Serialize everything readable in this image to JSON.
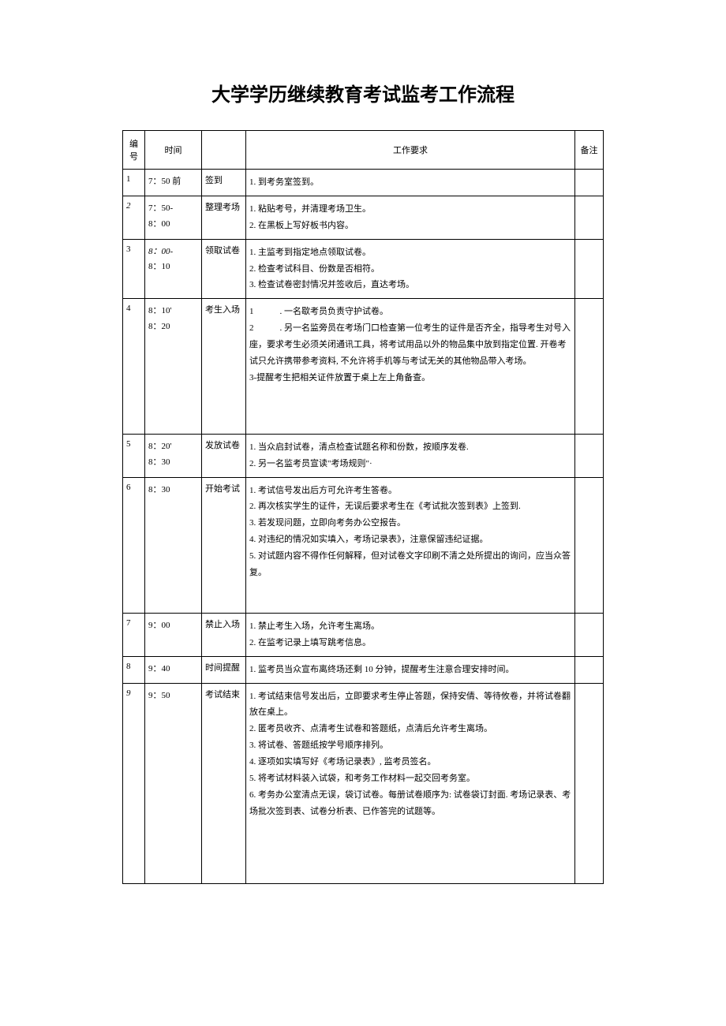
{
  "title": "大学学历继续教育考试监考工作流程",
  "columns": [
    "编号",
    "时间",
    "",
    "工作要求",
    "备注"
  ],
  "rows": [
    {
      "num": "1",
      "time": "7：50 前",
      "stage": "签到",
      "req": [
        "1. 到考务室签到。"
      ],
      "remark": "",
      "rowClass": ""
    },
    {
      "num": "2",
      "numItalic": true,
      "time": "7：50-\n8：00",
      "stage": "整理考场",
      "req": [
        "1. 粘贴考号，并清理考场卫生。",
        "2. 在黑板上写好板书内容。"
      ],
      "remark": "",
      "rowClass": ""
    },
    {
      "num": "3",
      "time": "8：00-\n8：10",
      "timeItalic": true,
      "stage": "领取试卷",
      "req": [
        "1. 主监考到指定地点领取试卷。",
        "2. 检查考试科目、份数是否相符。",
        "3. 检查试卷密封情况并签收后，直达考场。"
      ],
      "remark": "",
      "rowClass": ""
    },
    {
      "num": "4",
      "time": "8：10'\n8：20",
      "stage": "考生入场",
      "req": [
        "1　　　. 一名歇考员负责守护试卷。",
        "2　　　. 另一名监旁员在考场门口检查第一位考生的证件是否齐全，指导考生对号入座，要求考生必须关闭通讯工具，将考试用品以外的物品集中放到指定位置. 开卷考试只允许携带参考资料, 不允许将手机等与考试无关的其他物品带入考场。",
        "3-提醒考生把相关证件放置于桌上左上角备查。"
      ],
      "remark": "",
      "rowClass": "tall-row"
    },
    {
      "num": "5",
      "time": "8：20'\n8：30",
      "stage": "发放试卷",
      "req": [
        "1. 当众启封试卷，清点检查试题名称和份数，按顺序发卷.",
        "2. 另一名监考员宣读\"考场规则\"·"
      ],
      "remark": "",
      "rowClass": ""
    },
    {
      "num": "6",
      "time": "8：30",
      "stage": "开始考试",
      "req": [
        "1. 考试信号发出后方可允许考生答卷。",
        "2. 再次核实学生的证件，无误后要求考生在《考试批次签到表》上签到.",
        "3. 若发现问题，立即向考务办公空报告。",
        "4. 对违纪的情况如实填入，考场记录表》，注意保留违纪证据。",
        "5. 对试题内容不得作任何解释，但对试卷文字印刷不清之处所提出的询问，应当众答复。"
      ],
      "remark": "",
      "rowClass": "taller-row"
    },
    {
      "num": "7",
      "time": "9：00",
      "stage": "禁止入场",
      "req": [
        "1. 禁止考生入场，允许考生离场。",
        "2. 在监考记录上填写跳考信息。"
      ],
      "remark": "",
      "rowClass": ""
    },
    {
      "num": "8",
      "time": "9：40",
      "stage": "时间提醒",
      "req": [
        "1. 监考员当众宣布离终场还剩 10 分钟，提醒考生注意合理安排时间。"
      ],
      "remark": "",
      "rowClass": ""
    },
    {
      "num": "9",
      "numItalic": true,
      "time": "9：50",
      "stage": "考试结束",
      "req": [
        "1. 考试结束信号发出后，立即要求考生停止答题，保持安倩、等待攸卷，并将试卷翻放在桌上。",
        "2. 匿考员收齐、点清考生试卷和答题纸，点清后允许考生离场。",
        "3. 将试卷、答题纸按学号顺序排列。",
        "4. 逐项如实填写好《考场记录表》, 监考员签名。",
        "5. 将考试材料装入试袋，和考务工作材料一起交回考务室。",
        "6. 考务办公室清点无误，袋订试卷。每册试卷顺序为: 试卷袋订封面. 考场记录表、考场批次签到表、试卷分析表、已作答完的试题等。"
      ],
      "remark": "",
      "rowClass": "extra-tall"
    }
  ]
}
